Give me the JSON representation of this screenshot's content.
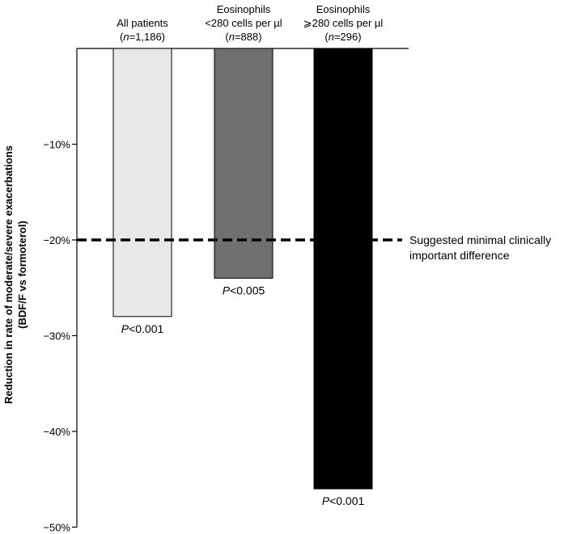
{
  "chart_data": {
    "type": "bar",
    "ylabel_lines": [
      "Reduction in rate of moderate/severe exacerbations",
      "(BDF/F vs formoterol)"
    ],
    "yticks": [
      "-10%",
      "-20%",
      "-30%",
      "-40%",
      "-50%"
    ],
    "ylim": [
      0,
      -50
    ],
    "categories": [
      {
        "lines": [
          "All patients"
        ],
        "n": "(n=1,186)",
        "value": -28,
        "p_label": "P<0.001",
        "color": "#e8e8e8"
      },
      {
        "lines": [
          "Eosinophils",
          "<280 cells per µl"
        ],
        "n": "(n=888)",
        "value": -24,
        "p_label": "P<0.005",
        "color": "#707070"
      },
      {
        "lines": [
          "Eosinophils",
          "⩾280 cells per µl"
        ],
        "n": "(n=296)",
        "value": -46,
        "p_label": "P<0.001",
        "color": "#000000"
      }
    ],
    "reference_line": {
      "value": -20,
      "label_lines": [
        "Suggested minimal clinically",
        "important difference"
      ]
    }
  }
}
